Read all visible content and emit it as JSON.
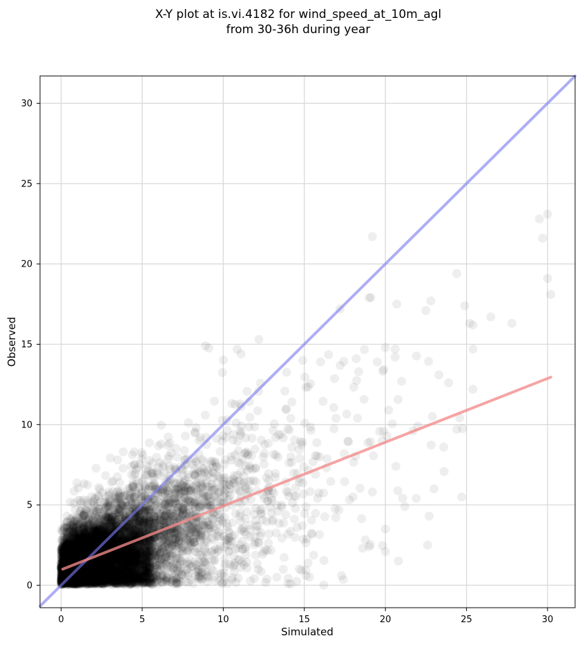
{
  "chart_data": {
    "type": "scatter",
    "title_line1": "X-Y plot at is.vi.4182 for wind_speed_at_10m_agl",
    "title_line2": "from 30-36h during year",
    "xlabel": "Simulated",
    "ylabel": "Observed",
    "xlim": [
      -1.3,
      31.7
    ],
    "ylim": [
      -1.4,
      31.7
    ],
    "xticks": [
      0,
      5,
      10,
      15,
      20,
      25,
      30
    ],
    "yticks": [
      0,
      5,
      10,
      15,
      20,
      25,
      30
    ],
    "xtick_labels": [
      "0",
      "5",
      "10",
      "15",
      "20",
      "25",
      "30"
    ],
    "ytick_labels": [
      "0",
      "5",
      "10",
      "15",
      "20",
      "25",
      "30"
    ],
    "grid": true,
    "one_to_one_line": {
      "color": "#7b7bf0",
      "x": [
        -1.3,
        31.7
      ],
      "y": [
        -1.3,
        31.7
      ]
    },
    "fit_line": {
      "color": "#f38b8b",
      "x": [
        0.1,
        30.2
      ],
      "y": [
        1.0,
        12.95
      ]
    },
    "point_color": "#000000",
    "dense_cluster_note_points": [
      [
        0.5,
        0.3
      ],
      [
        1.2,
        0.6
      ],
      [
        2.0,
        1.1
      ],
      [
        3.1,
        1.5
      ],
      [
        4.0,
        2.0
      ],
      [
        5.2,
        2.4
      ],
      [
        6.1,
        3.0
      ],
      [
        7.3,
        3.4
      ],
      [
        8.2,
        4.1
      ],
      [
        9.0,
        4.6
      ],
      [
        10.1,
        5.0
      ],
      [
        11.2,
        5.5
      ],
      [
        12.3,
        6.0
      ],
      [
        13.4,
        6.5
      ]
    ],
    "outlier_points": [
      [
        8.9,
        14.9
      ],
      [
        11.1,
        14.4
      ],
      [
        12.2,
        15.3
      ],
      [
        17.2,
        17.2
      ],
      [
        19.2,
        21.7
      ],
      [
        19.0,
        17.9
      ],
      [
        19.1,
        17.9
      ],
      [
        20.7,
        17.5
      ],
      [
        22.5,
        17.1
      ],
      [
        22.8,
        17.7
      ],
      [
        24.4,
        19.4
      ],
      [
        24.9,
        17.4
      ],
      [
        25.2,
        16.3
      ],
      [
        25.4,
        16.2
      ],
      [
        26.5,
        16.7
      ],
      [
        27.8,
        16.3
      ],
      [
        29.5,
        22.8
      ],
      [
        29.7,
        21.6
      ],
      [
        30.0,
        23.1
      ],
      [
        30.0,
        19.1
      ],
      [
        30.2,
        18.1
      ],
      [
        25.4,
        14.7
      ],
      [
        23.3,
        13.1
      ],
      [
        23.9,
        12.6
      ],
      [
        25.4,
        12.2
      ],
      [
        20.0,
        14.8
      ],
      [
        20.6,
        14.2
      ],
      [
        21.0,
        12.7
      ],
      [
        19.5,
        13.9
      ],
      [
        18.2,
        14.1
      ],
      [
        16.0,
        13.9
      ],
      [
        14.9,
        14.0
      ],
      [
        20.0,
        3.5
      ],
      [
        20.0,
        2.1
      ],
      [
        20.8,
        1.5
      ],
      [
        22.6,
        2.5
      ],
      [
        21.2,
        4.9
      ],
      [
        22.7,
        4.3
      ],
      [
        23.0,
        6.0
      ],
      [
        19.0,
        2.4
      ],
      [
        18.6,
        2.3
      ],
      [
        17.3,
        0.6
      ],
      [
        16.2,
        0.0
      ],
      [
        15.1,
        0.6
      ],
      [
        14.0,
        0.1
      ],
      [
        18.0,
        5.5
      ],
      [
        19.2,
        5.8
      ],
      [
        22.9,
        10.5
      ],
      [
        23.6,
        8.6
      ],
      [
        24.4,
        9.7
      ],
      [
        22.0,
        9.9
      ],
      [
        21.7,
        9.6
      ],
      [
        20.2,
        10.9
      ],
      [
        19.8,
        9.0
      ]
    ]
  }
}
